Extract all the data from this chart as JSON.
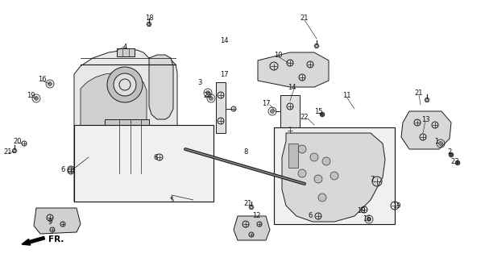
{
  "background_color": "#ffffff",
  "line_color": "#1a1a1a",
  "label_color": "#111111",
  "lw": 0.7,
  "fontsize": 6.0,
  "labels": [
    [
      "4",
      155,
      58
    ],
    [
      "18",
      185,
      22
    ],
    [
      "16",
      52,
      98
    ],
    [
      "19",
      38,
      118
    ],
    [
      "20",
      22,
      175
    ],
    [
      "21",
      10,
      188
    ],
    [
      "6",
      78,
      210
    ],
    [
      "6",
      193,
      195
    ],
    [
      "8",
      305,
      188
    ],
    [
      "5",
      213,
      248
    ],
    [
      "9",
      62,
      275
    ],
    [
      "3",
      248,
      102
    ],
    [
      "22",
      258,
      118
    ],
    [
      "14",
      278,
      50
    ],
    [
      "17",
      278,
      92
    ],
    [
      "10",
      345,
      68
    ],
    [
      "21",
      378,
      22
    ],
    [
      "14",
      362,
      108
    ],
    [
      "17",
      330,
      128
    ],
    [
      "22",
      378,
      145
    ],
    [
      "15",
      395,
      138
    ],
    [
      "11",
      430,
      118
    ],
    [
      "7",
      462,
      222
    ],
    [
      "6",
      385,
      268
    ],
    [
      "19",
      448,
      262
    ],
    [
      "16",
      455,
      272
    ],
    [
      "19",
      492,
      255
    ],
    [
      "12",
      318,
      268
    ],
    [
      "21",
      308,
      252
    ],
    [
      "21",
      520,
      115
    ],
    [
      "13",
      528,
      148
    ],
    [
      "1",
      542,
      175
    ],
    [
      "2",
      558,
      188
    ],
    [
      "23",
      565,
      200
    ]
  ]
}
